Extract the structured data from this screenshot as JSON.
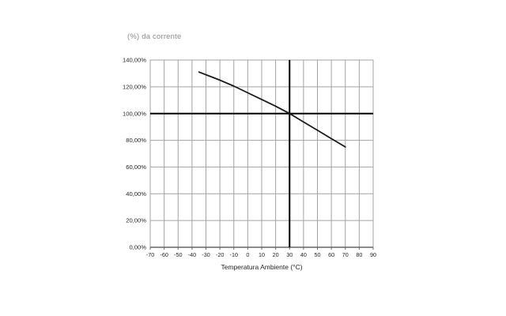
{
  "chart_data": {
    "type": "line",
    "title": "(%) da corrente",
    "xlabel": "Temperatura Ambiente (°C)",
    "ylabel": "(%) da corrente",
    "xlim": [
      -70,
      90
    ],
    "ylim": [
      0,
      140
    ],
    "grid": true,
    "legend_position": "none",
    "x_ticks": [
      -70,
      -60,
      -50,
      -40,
      -30,
      -20,
      -10,
      0,
      10,
      20,
      30,
      40,
      50,
      60,
      70,
      80,
      90
    ],
    "y_ticks": [
      {
        "v": 0,
        "label": "0,00%"
      },
      {
        "v": 20,
        "label": "20,00%"
      },
      {
        "v": 40,
        "label": "40,00%"
      },
      {
        "v": 60,
        "label": "60,00%"
      },
      {
        "v": 80,
        "label": "80,00%"
      },
      {
        "v": 100,
        "label": "100,00%"
      },
      {
        "v": 120,
        "label": "120,00%"
      },
      {
        "v": 140,
        "label": "140,00%"
      }
    ],
    "reference_lines": [
      {
        "axis": "y",
        "value": 100,
        "meaning": "100% of rated current"
      },
      {
        "axis": "x",
        "value": 30,
        "meaning": "30 °C reference ambient temperature"
      }
    ],
    "series": [
      {
        "name": "current-derating-curve",
        "points": [
          [
            -35,
            131
          ],
          [
            -30,
            129
          ],
          [
            -20,
            125
          ],
          [
            -10,
            120.5
          ],
          [
            0,
            115.5
          ],
          [
            10,
            110.5
          ],
          [
            20,
            105.5
          ],
          [
            30,
            100
          ],
          [
            40,
            93.7
          ],
          [
            50,
            87.5
          ],
          [
            60,
            81.2
          ],
          [
            70,
            75
          ]
        ]
      }
    ],
    "colors": {
      "curve": "#1a1a1a",
      "grid": "#a3a3a3",
      "axis": "#666666",
      "reference": "#000000",
      "tick_labels": "#262626",
      "title": "#8a8a8a"
    }
  }
}
